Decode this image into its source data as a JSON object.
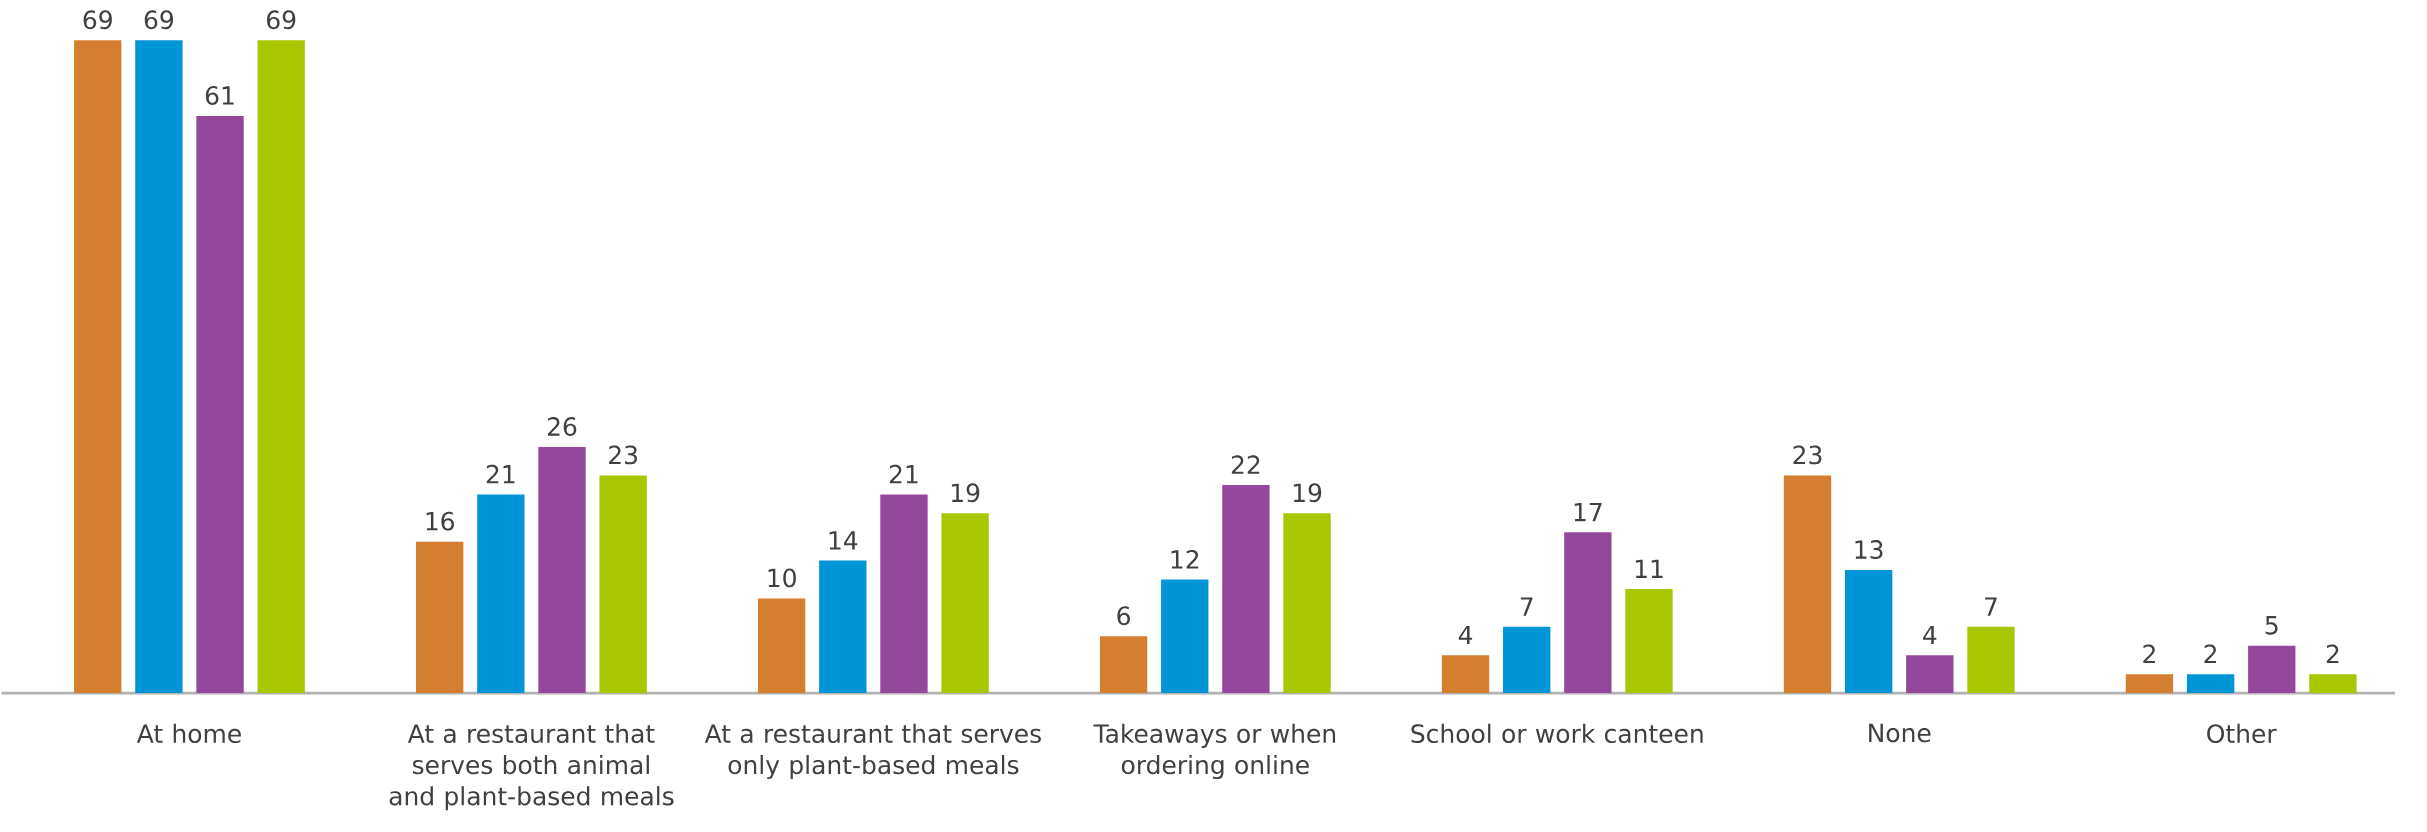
{
  "chart_data": {
    "type": "bar",
    "categories": [
      "At home",
      "At a restaurant that serves both animal and plant-based meals",
      "At a restaurant that serves only plant-based meals",
      "Takeaways or when ordering online",
      "School or work canteen",
      "None",
      "Other"
    ],
    "series": [
      {
        "color": "#d47f2f",
        "values": [
          69,
          16,
          10,
          6,
          4,
          23,
          2
        ]
      },
      {
        "color": "#0095d6",
        "values": [
          69,
          21,
          14,
          12,
          7,
          13,
          2
        ]
      },
      {
        "color": "#94489b",
        "values": [
          61,
          26,
          21,
          22,
          17,
          4,
          5
        ]
      },
      {
        "color": "#a8c700",
        "values": [
          69,
          23,
          19,
          19,
          11,
          7,
          2
        ]
      }
    ],
    "data_labels": true
  }
}
